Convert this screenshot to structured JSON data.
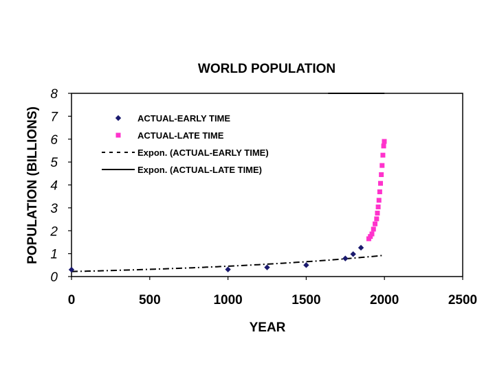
{
  "chart_data": {
    "type": "scatter",
    "title": "WORLD POPULATION",
    "xlabel": "YEAR",
    "ylabel": "POPULATION (BILLIONS)",
    "xlim": [
      0,
      2500
    ],
    "ylim": [
      0,
      8
    ],
    "xticks": [
      0,
      500,
      1000,
      1500,
      2000,
      2500
    ],
    "yticks": [
      0,
      1,
      2,
      3,
      4,
      5,
      6,
      7,
      8
    ],
    "grid": false,
    "legend_position": "top-left",
    "series": [
      {
        "name": "ACTUAL-EARLY TIME",
        "kind": "markers",
        "marker": "diamond",
        "color": "#1a1a6e",
        "points": [
          [
            0,
            0.3
          ],
          [
            1000,
            0.31
          ],
          [
            1250,
            0.4
          ],
          [
            1500,
            0.5
          ],
          [
            1750,
            0.79
          ],
          [
            1800,
            0.98
          ],
          [
            1850,
            1.26
          ]
        ]
      },
      {
        "name": "ACTUAL-LATE TIME",
        "kind": "markers",
        "marker": "square",
        "color": "#ff33cc",
        "points": [
          [
            1900,
            1.65
          ],
          [
            1910,
            1.75
          ],
          [
            1920,
            1.86
          ],
          [
            1930,
            2.07
          ],
          [
            1940,
            2.3
          ],
          [
            1950,
            2.52
          ],
          [
            1955,
            2.77
          ],
          [
            1960,
            3.04
          ],
          [
            1965,
            3.33
          ],
          [
            1970,
            3.7
          ],
          [
            1975,
            4.07
          ],
          [
            1980,
            4.45
          ],
          [
            1985,
            4.85
          ],
          [
            1990,
            5.3
          ],
          [
            1995,
            5.7
          ],
          [
            1999,
            5.9
          ]
        ]
      },
      {
        "name": "Expon. (ACTUAL-EARLY TIME)",
        "kind": "trendline",
        "dash": "dash-dot",
        "color": "#000000",
        "model": "exponential",
        "a": 0.22,
        "b": 0.00072,
        "x_range": [
          0,
          1990
        ]
      },
      {
        "name": "Expon. (ACTUAL-LATE TIME)",
        "kind": "trendline",
        "dash": "solid",
        "color": "#000000",
        "model": "exponential",
        "a": 0.00018,
        "b": 0.025,
        "x_range": [
          1640,
          2000
        ]
      }
    ]
  }
}
